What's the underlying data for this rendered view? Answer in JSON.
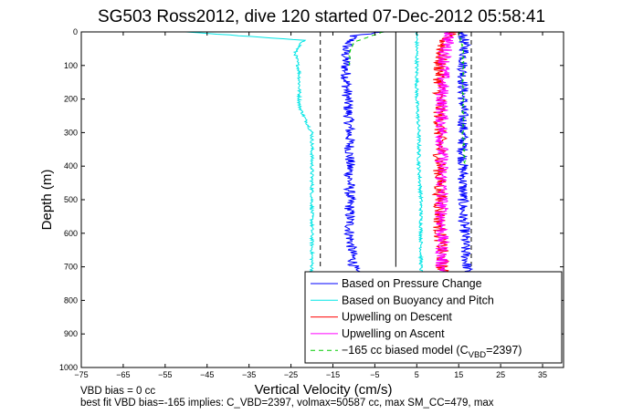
{
  "chart_data": {
    "type": "line",
    "title": "SG503 Ross2012, dive 120 started 07-Dec-2012 05:58:41",
    "xlabel": "Vertical Velocity (cm/s)",
    "ylabel": "Depth (m)",
    "xlim": [
      -75,
      40
    ],
    "ylim": [
      0,
      1000
    ],
    "y_reversed": true,
    "xticks": [
      -75,
      -65,
      -55,
      -45,
      -35,
      -25,
      -15,
      -5,
      5,
      15,
      25,
      35
    ],
    "yticks": [
      0,
      100,
      200,
      300,
      400,
      500,
      600,
      700,
      800,
      900,
      1000
    ],
    "grid": false,
    "legend_position": "bottom-right",
    "series": [
      {
        "name": "Based on Pressure Change",
        "color": "#0000ff",
        "style": "solid",
        "branches": [
          {
            "x": [
              -3,
              -10,
              -12,
              -12,
              -11.5,
              -11,
              -11,
              -11,
              -11,
              -11,
              -10.5,
              -10,
              -10
            ],
            "y": [
              0,
              10,
              50,
              100,
              200,
              300,
              400,
              500,
              550,
              600,
              650,
              700,
              720
            ]
          },
          {
            "x": [
              15,
              16,
              16.5,
              16,
              16,
              16,
              16,
              16,
              16,
              16.5,
              16.5,
              17,
              17
            ],
            "y": [
              0,
              10,
              50,
              100,
              200,
              300,
              400,
              500,
              550,
              600,
              650,
              700,
              720
            ]
          }
        ]
      },
      {
        "name": "Based on Buoyancy and Pitch",
        "color": "#00e5e5",
        "style": "solid",
        "branches": [
          {
            "x": [
              -75,
              -50,
              -22,
              -24,
              -23,
              -23,
              -22,
              -20,
              -20,
              -20,
              -20,
              -20,
              -20
            ],
            "y": [
              0,
              0,
              25,
              60,
              120,
              220,
              250,
              300,
              400,
              500,
              600,
              700,
              720
            ]
          },
          {
            "x": [
              38,
              5,
              5,
              5,
              5,
              5.5,
              5.5,
              6,
              6,
              6,
              6
            ],
            "y": [
              0,
              0,
              50,
              100,
              200,
              300,
              400,
              500,
              600,
              700,
              720
            ]
          }
        ]
      },
      {
        "name": "Upwelling on Descent",
        "color": "#ff0000",
        "style": "solid",
        "x": [
          40,
          14,
          12,
          11,
          10.5,
          10.5,
          10.5,
          10.5,
          10.5,
          10.5,
          11,
          11,
          11
        ],
        "y": [
          0,
          0,
          10,
          50,
          100,
          200,
          300,
          400,
          500,
          600,
          650,
          700,
          720
        ]
      },
      {
        "name": "Upwelling on Ascent",
        "color": "#ff00ff",
        "style": "solid",
        "x": [
          13,
          12,
          11.5,
          11,
          11,
          11,
          11,
          11,
          11,
          11,
          11.5,
          11.5
        ],
        "y": [
          0,
          50,
          100,
          200,
          300,
          400,
          500,
          600,
          650,
          700,
          710,
          720
        ]
      },
      {
        "name": "-165 cc biased model (C_VBD=2397)",
        "color": "#00cc00",
        "style": "dashed",
        "branches": [
          {
            "x": [
              -50,
              -3,
              -10,
              -11,
              -11,
              -11
            ],
            "y": [
              0,
              0,
              30,
              60,
              80,
              100
            ]
          },
          {
            "x": [
              15,
              16,
              16,
              16,
              16,
              16.5
            ],
            "y": [
              0,
              50,
              100,
              200,
              300,
              400
            ]
          }
        ]
      }
    ],
    "reference_lines": [
      {
        "x": 0,
        "style": "solid",
        "color": "#000000"
      },
      {
        "x": -18,
        "style": "dashed",
        "color": "#000000"
      },
      {
        "x": 18,
        "style": "dashed",
        "color": "#000000"
      }
    ],
    "legend": {
      "entries": [
        {
          "label": "Based on Pressure Change",
          "color": "#0000ff",
          "style": "solid"
        },
        {
          "label": "Based on Buoyancy and Pitch",
          "color": "#00e5e5",
          "style": "solid"
        },
        {
          "label": "Upwelling on Descent",
          "color": "#ff0000",
          "style": "solid"
        },
        {
          "label": "Upwelling on Ascent",
          "color": "#ff00ff",
          "style": "solid"
        }
      ],
      "model_entry": {
        "color": "#00cc00",
        "style": "dashed",
        "prefix": "−165 cc biased model (C",
        "sub": "VBD",
        "suffix": "=2397)"
      }
    },
    "footer": {
      "line1": "VBD bias = 0 cc",
      "line2": "best fit VBD bias=-165 implies: C_VBD=2397, volmax=50587 cc, max SM_CC=479, max"
    }
  }
}
